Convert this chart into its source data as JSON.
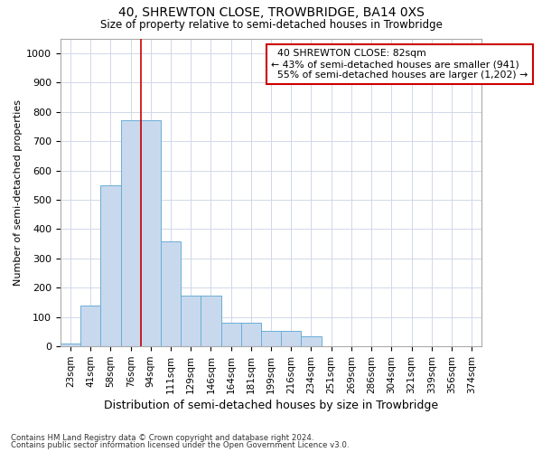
{
  "title1": "40, SHREWTON CLOSE, TROWBRIDGE, BA14 0XS",
  "title2": "Size of property relative to semi-detached houses in Trowbridge",
  "xlabel": "Distribution of semi-detached houses by size in Trowbridge",
  "ylabel": "Number of semi-detached properties",
  "bin_labels": [
    "23sqm",
    "41sqm",
    "58sqm",
    "76sqm",
    "94sqm",
    "111sqm",
    "129sqm",
    "146sqm",
    "164sqm",
    "181sqm",
    "199sqm",
    "216sqm",
    "234sqm",
    "251sqm",
    "269sqm",
    "286sqm",
    "304sqm",
    "321sqm",
    "339sqm",
    "356sqm",
    "374sqm"
  ],
  "bar_heights": [
    10,
    140,
    548,
    770,
    770,
    358,
    172,
    172,
    80,
    80,
    54,
    54,
    35,
    0,
    0,
    0,
    0,
    0,
    0,
    0,
    0
  ],
  "bar_color": "#c8d9ee",
  "bar_edgecolor": "#6aaed6",
  "property_label": "40 SHREWTON CLOSE: 82sqm",
  "pct_smaller": 43,
  "n_smaller": 941,
  "pct_larger": 55,
  "n_larger": 1202,
  "vline_color": "#cc0000",
  "annotation_box_edgecolor": "#cc0000",
  "ylim": [
    0,
    1050
  ],
  "yticks": [
    0,
    100,
    200,
    300,
    400,
    500,
    600,
    700,
    800,
    900,
    1000
  ],
  "grid_color": "#d0d8e8",
  "vline_x": 3.5,
  "footnote1": "Contains HM Land Registry data © Crown copyright and database right 2024.",
  "footnote2": "Contains public sector information licensed under the Open Government Licence v3.0."
}
